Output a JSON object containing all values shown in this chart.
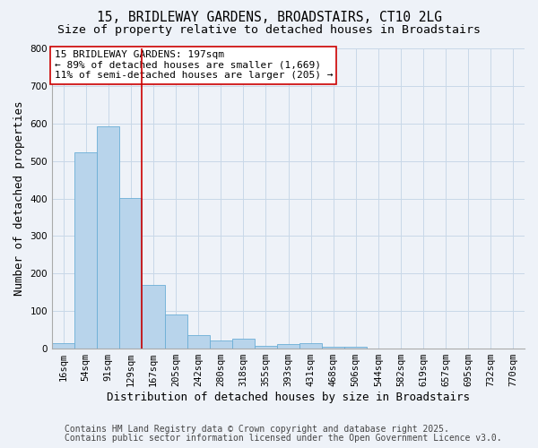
{
  "title_line1": "15, BRIDLEWAY GARDENS, BROADSTAIRS, CT10 2LG",
  "title_line2": "Size of property relative to detached houses in Broadstairs",
  "xlabel": "Distribution of detached houses by size in Broadstairs",
  "ylabel": "Number of detached properties",
  "categories": [
    "16sqm",
    "54sqm",
    "91sqm",
    "129sqm",
    "167sqm",
    "205sqm",
    "242sqm",
    "280sqm",
    "318sqm",
    "355sqm",
    "393sqm",
    "431sqm",
    "468sqm",
    "506sqm",
    "544sqm",
    "582sqm",
    "619sqm",
    "657sqm",
    "695sqm",
    "732sqm",
    "770sqm"
  ],
  "values": [
    14,
    524,
    592,
    401,
    170,
    90,
    36,
    22,
    26,
    8,
    13,
    14,
    5,
    4,
    0,
    0,
    0,
    0,
    0,
    0,
    0
  ],
  "bar_color": "#b8d4eb",
  "bar_edge_color": "#6baed6",
  "vline_color": "#cc0000",
  "vline_pos": 4.0,
  "annotation_text": "15 BRIDLEWAY GARDENS: 197sqm\n← 89% of detached houses are smaller (1,669)\n11% of semi-detached houses are larger (205) →",
  "annotation_box_color": "#ffffff",
  "annotation_box_edge": "#cc0000",
  "ylim": [
    0,
    800
  ],
  "yticks": [
    0,
    100,
    200,
    300,
    400,
    500,
    600,
    700,
    800
  ],
  "grid_color": "#c8d8e8",
  "background_color": "#eef2f8",
  "footer_line1": "Contains HM Land Registry data © Crown copyright and database right 2025.",
  "footer_line2": "Contains public sector information licensed under the Open Government Licence v3.0.",
  "title_fontsize": 10.5,
  "subtitle_fontsize": 9.5,
  "axis_label_fontsize": 9,
  "tick_fontsize": 7.5,
  "annotation_fontsize": 8,
  "footer_fontsize": 7
}
